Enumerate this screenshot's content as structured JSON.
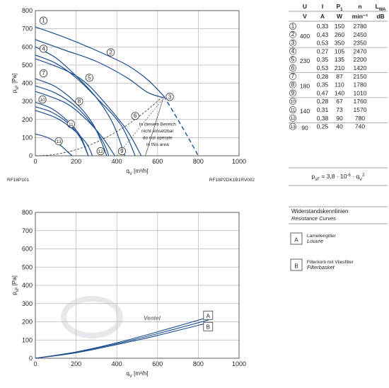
{
  "chart_data": [
    {
      "type": "line",
      "xlabel": "q",
      "xlabel_sub": "V",
      "xlabel_unit": " [m³/h]",
      "ylabel": "p",
      "ylabel_sub": "sF",
      "ylabel_unit": " [Pa]",
      "xlim": [
        0,
        1000
      ],
      "ylim": [
        0,
        800
      ],
      "xticks": [
        0,
        200,
        400,
        600,
        800,
        1000
      ],
      "yticks": [
        0,
        100,
        200,
        300,
        400,
        500,
        600,
        700,
        800
      ],
      "grid": true,
      "footer_left": "RF18P101",
      "footer_right": "RF18P2DK1B1RV002",
      "note": [
        "In diesem Bereich",
        "nicht einsetzbar",
        "do not operate",
        "in this area"
      ],
      "series": [
        {
          "name": "1",
          "solid": [
            [
              0,
              710
            ],
            [
              150,
              650
            ],
            [
              300,
              580
            ],
            [
              450,
              500
            ],
            [
              550,
              420
            ],
            [
              630,
              330
            ]
          ],
          "dashed": [
            [
              630,
              330
            ],
            [
              720,
              160
            ],
            [
              800,
              0
            ]
          ],
          "label_at": [
            40,
            745
          ]
        },
        {
          "name": "2",
          "solid": [
            [
              0,
              640
            ],
            [
              150,
              580
            ],
            [
              300,
              520
            ],
            [
              450,
              430
            ],
            [
              550,
              350
            ],
            [
              630,
              320
            ]
          ],
          "dashed": [],
          "label_at": [
            370,
            570
          ]
        },
        {
          "name": "3",
          "solid": [],
          "dashed": [],
          "label_at": [
            660,
            325
          ]
        },
        {
          "name": "4",
          "solid": [
            [
              0,
              600
            ],
            [
              100,
              540
            ],
            [
              200,
              440
            ],
            [
              300,
              320
            ],
            [
              380,
              180
            ],
            [
              440,
              0
            ]
          ],
          "dashed": [],
          "label_at": [
            40,
            590
          ]
        },
        {
          "name": "5",
          "solid": [
            [
              0,
              555
            ],
            [
              100,
              510
            ],
            [
              200,
              430
            ],
            [
              300,
              320
            ],
            [
              420,
              170
            ],
            [
              490,
              0
            ]
          ],
          "dashed": [],
          "label_at": [
            265,
            430
          ]
        },
        {
          "name": "6",
          "solid": [
            [
              0,
              535
            ],
            [
              150,
              470
            ],
            [
              250,
              400
            ],
            [
              350,
              280
            ],
            [
              450,
              140
            ],
            [
              520,
              0
            ]
          ],
          "dashed": [],
          "label_at": [
            490,
            220
          ]
        },
        {
          "name": "7",
          "solid": [
            [
              0,
              425
            ],
            [
              100,
              380
            ],
            [
              200,
              290
            ],
            [
              280,
              180
            ],
            [
              330,
              60
            ],
            [
              350,
              0
            ]
          ],
          "dashed": [],
          "label_at": [
            40,
            455
          ]
        },
        {
          "name": "8",
          "solid": [
            [
              0,
              385
            ],
            [
              100,
              345
            ],
            [
              200,
              270
            ],
            [
              280,
              170
            ],
            [
              340,
              60
            ],
            [
              360,
              0
            ]
          ],
          "dashed": [],
          "label_at": [
            215,
            300
          ]
        },
        {
          "name": "9",
          "solid": [
            [
              0,
              355
            ],
            [
              150,
              290
            ],
            [
              250,
              200
            ],
            [
              330,
              100
            ],
            [
              390,
              0
            ]
          ],
          "dashed": [],
          "label_at": [
            425,
            25
          ]
        },
        {
          "name": "10",
          "solid": [
            [
              0,
              295
            ],
            [
              80,
              260
            ],
            [
              160,
              190
            ],
            [
              220,
              110
            ],
            [
              260,
              0
            ]
          ],
          "dashed": [],
          "label_at": [
            35,
            310
          ]
        },
        {
          "name": "11",
          "solid": [
            [
              0,
              270
            ],
            [
              80,
              240
            ],
            [
              160,
              180
            ],
            [
              220,
              100
            ],
            [
              260,
              0
            ]
          ],
          "dashed": [],
          "label_at": [
            175,
            175
          ]
        },
        {
          "name": "12",
          "solid": [
            [
              0,
              250
            ],
            [
              100,
              210
            ],
            [
              180,
              150
            ],
            [
              250,
              70
            ],
            [
              280,
              0
            ]
          ],
          "dashed": [],
          "label_at": [
            320,
            25
          ]
        },
        {
          "name": "13",
          "solid": [
            [
              0,
              120
            ],
            [
              60,
              100
            ],
            [
              120,
              60
            ],
            [
              160,
              20
            ],
            [
              180,
              0
            ]
          ],
          "dashed": [],
          "label_at": [
            115,
            80
          ]
        }
      ],
      "system_curve": "p_sF = 3,8 · 10⁻⁶ · q_V²"
    },
    {
      "type": "line",
      "xlabel": "q",
      "xlabel_sub": "V",
      "xlabel_unit": " [m³/h]",
      "ylabel": "p",
      "ylabel_sub": "sF",
      "ylabel_unit": " [Pa]",
      "xlim": [
        0,
        1000
      ],
      "ylim": [
        0,
        800
      ],
      "xticks": [
        0,
        200,
        400,
        600,
        800,
        1000
      ],
      "yticks": [
        0,
        100,
        200,
        300,
        400,
        500,
        600,
        700,
        800
      ],
      "grid": true,
      "series": [
        {
          "name": "A",
          "points": [
            [
              0,
              0
            ],
            [
              200,
              35
            ],
            [
              400,
              85
            ],
            [
              600,
              145
            ],
            [
              850,
              225
            ]
          ]
        },
        {
          "name": "A",
          "points": [
            [
              0,
              0
            ],
            [
              200,
              33
            ],
            [
              400,
              80
            ],
            [
              600,
              135
            ],
            [
              850,
              210
            ]
          ]
        },
        {
          "name": "B",
          "points": [
            [
              0,
              0
            ],
            [
              200,
              30
            ],
            [
              400,
              75
            ],
            [
              600,
              125
            ],
            [
              850,
              195
            ]
          ]
        }
      ]
    }
  ],
  "table": {
    "headers": [
      "U",
      "I",
      "P",
      "n",
      "L"
    ],
    "header_subs": [
      "",
      "",
      "1",
      "",
      "WA"
    ],
    "units": [
      "V",
      "A",
      "W",
      "min⁻¹",
      "dB"
    ],
    "rows": [
      {
        "no": "1",
        "U": "",
        "I": "0,33",
        "P": "150",
        "n": "2780"
      },
      {
        "no": "2",
        "U": "400",
        "I": "0,43",
        "P": "260",
        "n": "2450"
      },
      {
        "no": "3",
        "U": "",
        "I": "0,53",
        "P": "350",
        "n": "2350"
      },
      {
        "no": "4",
        "U": "",
        "I": "0,27",
        "P": "105",
        "n": "2470"
      },
      {
        "no": "5",
        "U": "230",
        "I": "0,35",
        "P": "135",
        "n": "2200"
      },
      {
        "no": "6",
        "U": "",
        "I": "0,53",
        "P": "210",
        "n": "1420"
      },
      {
        "no": "7",
        "U": "",
        "I": "0,28",
        "P": "87",
        "n": "2150"
      },
      {
        "no": "8",
        "U": "180",
        "I": "0,35",
        "P": "110",
        "n": "1780"
      },
      {
        "no": "9",
        "U": "",
        "I": "0,47",
        "P": "140",
        "n": "1010"
      },
      {
        "no": "10",
        "U": "",
        "I": "0,28",
        "P": "67",
        "n": "1760"
      },
      {
        "no": "11",
        "U": "140",
        "I": "0,31",
        "P": "73",
        "n": "1570"
      },
      {
        "no": "12",
        "U": "",
        "I": "0,38",
        "P": "90",
        "n": "780"
      },
      {
        "no": "13",
        "U": "90",
        "I": "0,25",
        "P": "40",
        "n": "740"
      }
    ],
    "formula": "p",
    "formula_sub": "sF",
    "formula_mid": " = 3,8 · 10",
    "formula_exp": "-6",
    "formula_tail": " · q",
    "formula_sub2": "V",
    "formula_exp2": "2"
  },
  "legend": {
    "title": "Widerstandskennlinien",
    "title_en": "Resistance Curves",
    "items": [
      {
        "key": "A",
        "label": "Lamellengitter",
        "label_en": "Louvre"
      },
      {
        "key": "B",
        "label": "Filterkorb mit Vliesfilter",
        "label_en": "Filterbasket"
      }
    ]
  },
  "watermark": "Ventel",
  "colors": {
    "curve": "#1d4e8f",
    "grid": "#b8b8b8",
    "dash": "#333333",
    "watermark": "#c9cdd3"
  }
}
